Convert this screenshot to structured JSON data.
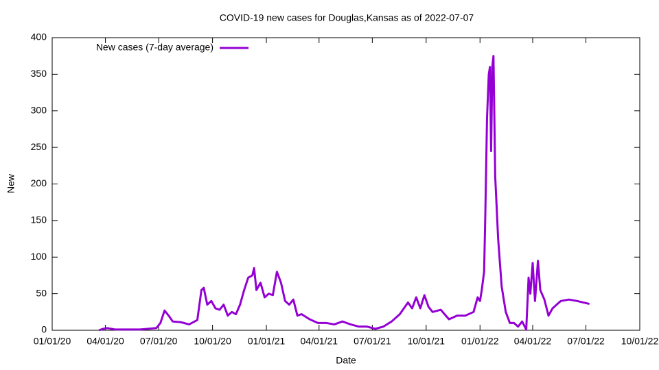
{
  "chart_data": {
    "type": "line",
    "title": "COVID-19 new cases for Douglas,Kansas as of 2022-07-07",
    "x_label": "Date",
    "y_label": "New",
    "x": [
      "2020-03-21",
      "2020-03-28",
      "2020-04-04",
      "2020-04-18",
      "2020-05-02",
      "2020-05-16",
      "2020-05-30",
      "2020-06-13",
      "2020-06-27",
      "2020-07-04",
      "2020-07-11",
      "2020-07-18",
      "2020-07-25",
      "2020-08-08",
      "2020-08-22",
      "2020-09-05",
      "2020-09-12",
      "2020-09-16",
      "2020-09-22",
      "2020-09-29",
      "2020-10-06",
      "2020-10-13",
      "2020-10-20",
      "2020-10-27",
      "2020-11-03",
      "2020-11-10",
      "2020-11-17",
      "2020-11-24",
      "2020-12-01",
      "2020-12-08",
      "2020-12-11",
      "2020-12-15",
      "2020-12-22",
      "2020-12-29",
      "2021-01-05",
      "2021-01-12",
      "2021-01-19",
      "2021-01-26",
      "2021-02-02",
      "2021-02-09",
      "2021-02-16",
      "2021-02-23",
      "2021-03-02",
      "2021-03-16",
      "2021-03-30",
      "2021-04-13",
      "2021-04-27",
      "2021-05-11",
      "2021-05-25",
      "2021-06-08",
      "2021-06-22",
      "2021-07-06",
      "2021-07-20",
      "2021-08-03",
      "2021-08-17",
      "2021-08-31",
      "2021-09-07",
      "2021-09-14",
      "2021-09-21",
      "2021-09-28",
      "2021-10-05",
      "2021-10-12",
      "2021-10-26",
      "2021-11-09",
      "2021-11-23",
      "2021-12-07",
      "2021-12-21",
      "2021-12-28",
      "2022-01-01",
      "2022-01-04",
      "2022-01-08",
      "2022-01-10",
      "2022-01-13",
      "2022-01-16",
      "2022-01-18",
      "2022-01-20",
      "2022-01-22",
      "2022-01-24",
      "2022-01-27",
      "2022-02-01",
      "2022-02-07",
      "2022-02-14",
      "2022-02-21",
      "2022-02-28",
      "2022-03-07",
      "2022-03-14",
      "2022-03-21",
      "2022-03-25",
      "2022-03-28",
      "2022-04-01",
      "2022-04-05",
      "2022-04-10",
      "2022-04-14",
      "2022-04-21",
      "2022-04-28",
      "2022-05-05",
      "2022-05-19",
      "2022-06-02",
      "2022-06-16",
      "2022-07-07"
    ],
    "series": [
      {
        "name": "New cases (7-day average)",
        "color": "#9400d3",
        "values": [
          0,
          2,
          3,
          1,
          1,
          1,
          1,
          2,
          3,
          10,
          27,
          20,
          12,
          11,
          8,
          14,
          55,
          58,
          35,
          40,
          30,
          28,
          35,
          20,
          25,
          22,
          35,
          55,
          72,
          75,
          85,
          55,
          65,
          45,
          50,
          48,
          80,
          65,
          40,
          35,
          42,
          20,
          22,
          15,
          10,
          10,
          8,
          12,
          8,
          5,
          5,
          2,
          5,
          12,
          22,
          38,
          30,
          45,
          30,
          48,
          32,
          25,
          28,
          15,
          20,
          20,
          25,
          45,
          40,
          55,
          80,
          155,
          290,
          350,
          360,
          245,
          360,
          375,
          210,
          125,
          60,
          25,
          10,
          10,
          5,
          12,
          1,
          72,
          50,
          92,
          40,
          95,
          55,
          42,
          20,
          30,
          40,
          42,
          40,
          36
        ]
      }
    ],
    "xlim": [
      "2020-01-01",
      "2022-10-01"
    ],
    "xticks": [
      {
        "value": "2020-01-01",
        "label": "01/01/20"
      },
      {
        "value": "2020-04-01",
        "label": "04/01/20"
      },
      {
        "value": "2020-07-01",
        "label": "07/01/20"
      },
      {
        "value": "2020-10-01",
        "label": "10/01/20"
      },
      {
        "value": "2021-01-01",
        "label": "01/01/21"
      },
      {
        "value": "2021-04-01",
        "label": "04/01/21"
      },
      {
        "value": "2021-07-01",
        "label": "07/01/21"
      },
      {
        "value": "2021-10-01",
        "label": "10/01/21"
      },
      {
        "value": "2022-01-01",
        "label": "01/01/22"
      },
      {
        "value": "2022-04-01",
        "label": "04/01/22"
      },
      {
        "value": "2022-07-01",
        "label": "07/01/22"
      },
      {
        "value": "2022-10-01",
        "label": "10/01/22"
      }
    ],
    "ylim": [
      0,
      400
    ],
    "yticks": [
      0,
      50,
      100,
      150,
      200,
      250,
      300,
      350,
      400
    ],
    "legend": "top-left"
  }
}
